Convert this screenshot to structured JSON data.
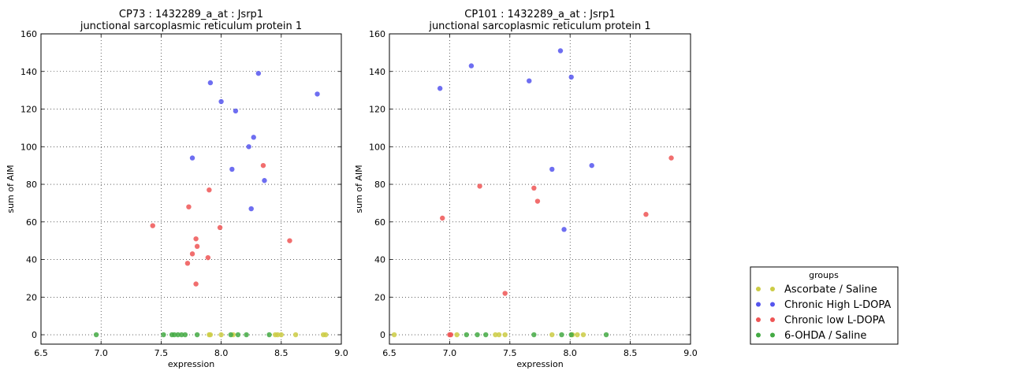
{
  "chart_data": [
    {
      "type": "scatter",
      "title": [
        "CP73 : 1432289_a_at : Jsrp1",
        "junctional sarcoplasmic reticulum protein 1"
      ],
      "xlabel": "expression",
      "ylabel": "sum of AIM",
      "xlim": [
        6.5,
        9.0
      ],
      "ylim": [
        -5,
        160
      ],
      "xticks": [
        "6.5",
        "7.0",
        "7.5",
        "8.0",
        "8.5",
        "9.0"
      ],
      "yticks": [
        "0",
        "20",
        "40",
        "60",
        "80",
        "100",
        "120",
        "140",
        "160"
      ],
      "grid": "dotted",
      "series": [
        {
          "name": "Ascorbate / Saline",
          "color": "#cccc44",
          "points": [
            [
              7.9,
              0
            ],
            [
              7.91,
              0
            ],
            [
              8.0,
              0
            ],
            [
              8.1,
              0
            ],
            [
              8.45,
              0
            ],
            [
              8.47,
              0
            ],
            [
              8.5,
              0
            ],
            [
              8.62,
              0
            ],
            [
              8.85,
              0
            ],
            [
              8.87,
              0
            ]
          ]
        },
        {
          "name": "Chronic High L-DOPA",
          "color": "#5555ee",
          "points": [
            [
              7.91,
              134
            ],
            [
              8.31,
              139
            ],
            [
              8.0,
              124
            ],
            [
              8.12,
              119
            ],
            [
              8.8,
              128
            ],
            [
              8.27,
              105
            ],
            [
              8.23,
              100
            ],
            [
              7.76,
              94
            ],
            [
              8.09,
              88
            ],
            [
              8.36,
              82
            ],
            [
              8.25,
              67
            ]
          ]
        },
        {
          "name": "Chronic low L-DOPA",
          "color": "#ee5555",
          "points": [
            [
              8.35,
              90
            ],
            [
              7.9,
              77
            ],
            [
              7.73,
              68
            ],
            [
              7.43,
              58
            ],
            [
              7.99,
              57
            ],
            [
              7.79,
              51
            ],
            [
              7.8,
              47
            ],
            [
              8.57,
              50
            ],
            [
              7.76,
              43
            ],
            [
              7.89,
              41
            ],
            [
              7.72,
              38
            ],
            [
              7.79,
              27
            ]
          ]
        },
        {
          "name": "6-OHDA / Saline",
          "color": "#44aa44",
          "points": [
            [
              6.96,
              0
            ],
            [
              7.52,
              0
            ],
            [
              7.59,
              0
            ],
            [
              7.61,
              0
            ],
            [
              7.64,
              0
            ],
            [
              7.67,
              0
            ],
            [
              7.7,
              0
            ],
            [
              7.8,
              0
            ],
            [
              8.08,
              0
            ],
            [
              8.14,
              0
            ],
            [
              8.21,
              0
            ],
            [
              8.4,
              0
            ]
          ]
        }
      ]
    },
    {
      "type": "scatter",
      "title": [
        "CP101 : 1432289_a_at : Jsrp1",
        "junctional sarcoplasmic reticulum protein 1"
      ],
      "xlabel": "expression",
      "ylabel": "sum of AIM",
      "xlim": [
        6.5,
        9.0
      ],
      "ylim": [
        -5,
        160
      ],
      "xticks": [
        "6.5",
        "7.0",
        "7.5",
        "8.0",
        "8.5",
        "9.0"
      ],
      "yticks": [
        "0",
        "20",
        "40",
        "60",
        "80",
        "100",
        "120",
        "140",
        "160"
      ],
      "grid": "dotted",
      "series": [
        {
          "name": "Ascorbate / Saline",
          "color": "#cccc44",
          "points": [
            [
              6.54,
              0
            ],
            [
              7.06,
              0
            ],
            [
              7.38,
              0
            ],
            [
              7.41,
              0
            ],
            [
              7.46,
              0
            ],
            [
              7.85,
              0
            ],
            [
              8.02,
              0
            ],
            [
              8.06,
              0
            ],
            [
              8.11,
              0
            ]
          ]
        },
        {
          "name": "Chronic High L-DOPA",
          "color": "#5555ee",
          "points": [
            [
              6.92,
              131
            ],
            [
              7.18,
              143
            ],
            [
              7.92,
              151
            ],
            [
              7.66,
              135
            ],
            [
              8.01,
              137
            ],
            [
              8.18,
              90
            ],
            [
              7.85,
              88
            ],
            [
              7.95,
              56
            ]
          ]
        },
        {
          "name": "Chronic low L-DOPA",
          "color": "#ee5555",
          "points": [
            [
              8.84,
              94
            ],
            [
              7.25,
              79
            ],
            [
              7.7,
              78
            ],
            [
              7.73,
              71
            ],
            [
              8.63,
              64
            ],
            [
              6.94,
              62
            ],
            [
              7.46,
              22
            ],
            [
              7.0,
              0
            ],
            [
              7.01,
              0
            ]
          ]
        },
        {
          "name": "6-OHDA / Saline",
          "color": "#44aa44",
          "points": [
            [
              7.14,
              0
            ],
            [
              7.23,
              0
            ],
            [
              7.3,
              0
            ],
            [
              7.7,
              0
            ],
            [
              7.93,
              0
            ],
            [
              8.01,
              0
            ],
            [
              8.3,
              0
            ]
          ]
        }
      ]
    }
  ],
  "legend": {
    "title": "groups",
    "entries": [
      {
        "label": "Ascorbate / Saline",
        "color": "#cccc44"
      },
      {
        "label": "Chronic High L-DOPA",
        "color": "#5555ee"
      },
      {
        "label": "Chronic low L-DOPA",
        "color": "#ee5555"
      },
      {
        "label": "6-OHDA / Saline",
        "color": "#44aa44"
      }
    ]
  }
}
